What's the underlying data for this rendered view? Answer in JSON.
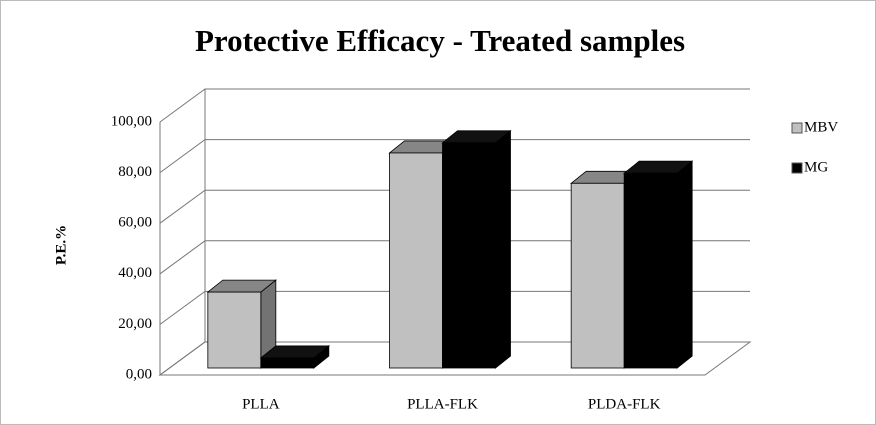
{
  "chart_data": {
    "type": "bar3d",
    "title": "Protective Efficacy - Treated samples",
    "y_label": "P.E.%",
    "categories": [
      "PLLA",
      "PLLA-FLK",
      "PLDA-FLK"
    ],
    "series": [
      {
        "name": "MBV",
        "color": "#c0c0c0",
        "values": [
          30,
          85,
          73
        ]
      },
      {
        "name": "MG",
        "color": "#000000",
        "values": [
          4,
          89,
          77
        ]
      }
    ],
    "ylim": [
      0,
      100
    ],
    "yticks": [
      {
        "value": 0,
        "label": "0,00"
      },
      {
        "value": 20,
        "label": "20,00"
      },
      {
        "value": 40,
        "label": "40,00"
      },
      {
        "value": 60,
        "label": "60,00"
      },
      {
        "value": 80,
        "label": "80,00"
      },
      {
        "value": 100,
        "label": "100,00"
      }
    ],
    "grid": true,
    "legend": "right"
  }
}
